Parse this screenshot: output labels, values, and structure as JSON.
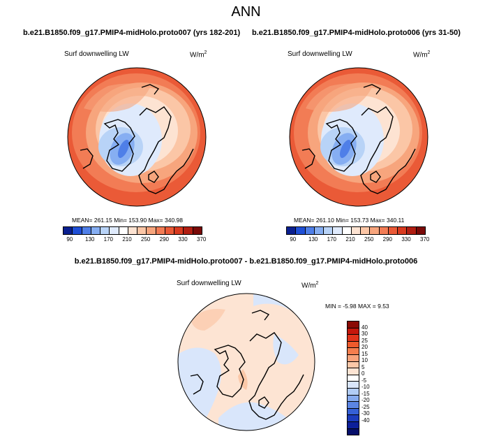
{
  "title": "ANN",
  "panels": [
    {
      "title": "b.e21.B1850.f09_g17.PMIP4-midHolo.proto007 (yrs 182-201)",
      "variable": "Surf downwelling LW",
      "units_base": "W/m",
      "units_exp": "2",
      "stats": "MEAN= 261.15  Min= 153.90  Max= 340.98"
    },
    {
      "title": "b.e21.B1850.f09_g17.PMIP4-midHolo.proto006 (yrs 31-50)",
      "variable": "Surf downwelling LW",
      "units_base": "W/m",
      "units_exp": "2",
      "stats": "MEAN= 261.10  Min= 153.73  Max= 340.11"
    },
    {
      "title": "b.e21.B1850.f09_g17.PMIP4-midHolo.proto007 - b.e21.B1850.f09_g17.PMIP4-midHolo.proto006",
      "variable": "Surf downwelling LW",
      "units_base": "W/m",
      "units_exp": "2",
      "stats": "MIN =  -5.98 MAX =   9.53"
    }
  ],
  "colorbar_abs": {
    "labels": [
      "90",
      "130",
      "170",
      "210",
      "250",
      "290",
      "330",
      "370"
    ],
    "colors": [
      "#0a1f8f",
      "#1f4fd6",
      "#4f7fe8",
      "#86aef2",
      "#b8d3f7",
      "#dfeafc",
      "#ffffff",
      "#fde3d2",
      "#fbc6a6",
      "#f7a57d",
      "#f27c55",
      "#ea5a37",
      "#d83a1f",
      "#b11e12",
      "#7a0a08"
    ]
  },
  "colorbar_diff": {
    "labels": [
      "40",
      "30",
      "25",
      "20",
      "15",
      "10",
      "5",
      "0",
      "-5",
      "-10",
      "-15",
      "-20",
      "-25",
      "-30",
      "-40"
    ],
    "colors": [
      "#8b0a05",
      "#c5170c",
      "#e0331b",
      "#ee5a2c",
      "#f47e4e",
      "#f8a47c",
      "#fbc8a8",
      "#fde4d3",
      "#ffffff",
      "#d9e6fb",
      "#b1ccf5",
      "#86aaee",
      "#5b85e4",
      "#3560d6",
      "#1c3cbc",
      "#0d1f9a",
      "#060f6b"
    ]
  },
  "icons": {
    "map": "polar-map-icon"
  }
}
